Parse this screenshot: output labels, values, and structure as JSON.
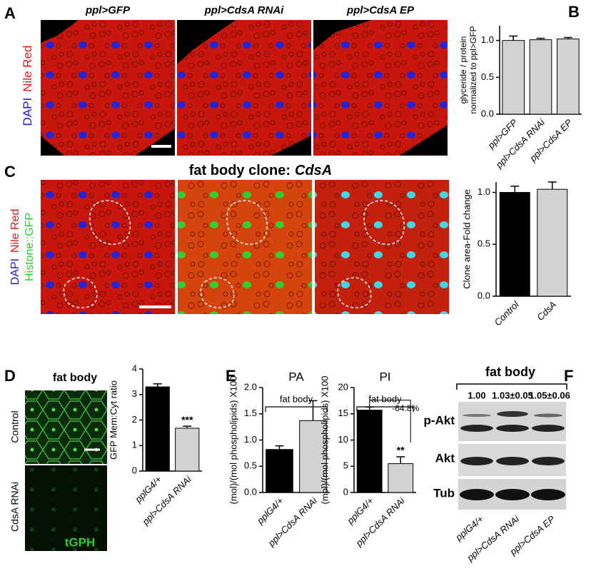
{
  "figure": {
    "panel_letters": [
      "A",
      "B",
      "C",
      "D",
      "E",
      "F"
    ],
    "a": {
      "columns": [
        "ppl>GFP",
        "ppl>CdsA RNAi",
        "ppl>CdsA EP"
      ],
      "stains": [
        "DAPI",
        "Nile Red"
      ]
    },
    "c": {
      "title": "fat body clone:",
      "title_italic": "CdsA",
      "stains": [
        "DAPI",
        "Nile Red",
        "Histone::GFP"
      ]
    },
    "d": {
      "title": "fat body",
      "rows": [
        "Control",
        "CdsA RNAi"
      ],
      "marker": "tGPH"
    },
    "f": {
      "title": "fat body",
      "quantities": [
        "1.00",
        "1.03±0.05",
        "1.05±0.06"
      ],
      "bands": [
        "p-Akt",
        "Akt",
        "Tub"
      ],
      "lanes": [
        "pplG4/+",
        "ppl>CdsA RNAi",
        "ppl>CdsA EP"
      ]
    }
  },
  "chart_data": [
    {
      "type": "bar",
      "categories": [
        "ppl>GFP",
        "ppl>CdsA RNAi",
        "ppl>CdsA EP"
      ],
      "values": [
        1.0,
        1.01,
        1.02
      ],
      "errors": [
        0.06,
        0.02,
        0.02
      ],
      "colors": [
        "#d3d3d3",
        "#d3d3d3",
        "#d3d3d3"
      ],
      "ylabel": [
        "glyceride / protein",
        "normalized to ppl>GFP"
      ],
      "ylim": [
        0,
        1.2
      ],
      "yticks": [
        {
          "value": 0,
          "label": "0.0"
        },
        {
          "value": 0.5,
          "label": "0.5"
        },
        {
          "value": 1,
          "label": "1.0"
        }
      ]
    },
    {
      "type": "bar",
      "categories": [
        "Control",
        "CdsA"
      ],
      "values": [
        1.0,
        1.03
      ],
      "errors": [
        0.06,
        0.07
      ],
      "colors": [
        "#000000",
        "#d3d3d3"
      ],
      "ylabel": "Clone area-Fold change",
      "ylim": [
        0,
        1.1
      ],
      "yticks": [
        {
          "value": 0,
          "label": "0.0"
        },
        {
          "value": 0.5,
          "label": "0.5"
        },
        {
          "value": 1,
          "label": "1.0"
        }
      ]
    },
    {
      "type": "bar",
      "categories": [
        "pplG4/+",
        "ppl>CdsA RNAi"
      ],
      "values": [
        3.3,
        1.68
      ],
      "errors": [
        0.12,
        0.08
      ],
      "colors": [
        "#000000",
        "#d3d3d3"
      ],
      "ylabel": "GFP Mem:Cyt ratio",
      "ylim": [
        0,
        4
      ],
      "yticks": [
        0,
        1,
        2,
        3,
        4
      ],
      "significance": [
        null,
        "***"
      ]
    },
    {
      "type": "bar",
      "title": "PA",
      "bracket_label": "fat body",
      "categories": [
        "pplG4/+",
        "ppl>CdsA RNAi"
      ],
      "values": [
        0.82,
        1.37
      ],
      "errors": [
        0.07,
        0.38
      ],
      "colors": [
        "#000000",
        "#d3d3d3"
      ],
      "ylabel": "(mol)/(mol phospholipids) X100",
      "ylim": [
        0,
        2
      ],
      "yticks": [
        {
          "value": 0,
          "label": "0.0"
        },
        {
          "value": 0.5,
          "label": "0.5"
        },
        {
          "value": 1,
          "label": "1.0"
        },
        {
          "value": 1.5,
          "label": "1.5"
        },
        {
          "value": 2,
          "label": "2.0"
        }
      ]
    },
    {
      "type": "bar",
      "title": "PI",
      "bracket_label": "fat body",
      "categories": [
        "pplG4/+",
        "ppl>CdsA RNAi"
      ],
      "values": [
        15.7,
        5.5
      ],
      "errors": [
        0.6,
        1.3
      ],
      "colors": [
        "#000000",
        "#d3d3d3"
      ],
      "ylabel": "(mol)/(mol phospholipids) X100",
      "ylim": [
        0,
        20
      ],
      "yticks": [
        0,
        5,
        10,
        15,
        20
      ],
      "significance": [
        null,
        "**"
      ],
      "change_label": "-64.8%"
    }
  ]
}
